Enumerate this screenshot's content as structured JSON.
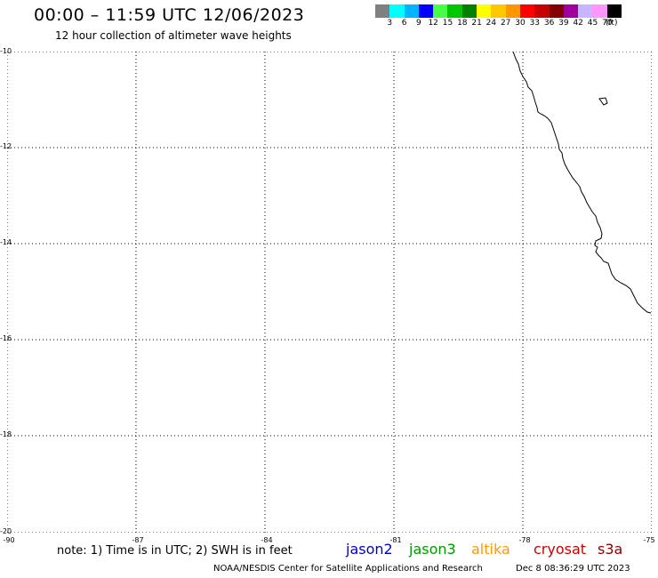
{
  "header": {
    "title": "00:00 – 11:59 UTC 12/06/2023",
    "subtitle": "12 hour collection of altimeter wave heights"
  },
  "legend": {
    "colors": [
      "#808080",
      "#00ffff",
      "#00b4ff",
      "#0000ff",
      "#46ff46",
      "#00c800",
      "#008200",
      "#ffff00",
      "#ffc800",
      "#ff9600",
      "#ff0000",
      "#c80000",
      "#820000",
      "#a000a0",
      "#c8b4ff",
      "#ff96ff",
      "#000000"
    ],
    "labels": [
      "3",
      "6",
      "9",
      "12",
      "15",
      "18",
      "21",
      "24",
      "27",
      "30",
      "33",
      "36",
      "39",
      "42",
      "45",
      "70",
      "(ft)"
    ]
  },
  "map": {
    "lat_ticks": [
      "-10",
      "-12",
      "-14",
      "-16",
      "-18",
      "-20"
    ],
    "lon_ticks": [
      "-90",
      "-87",
      "-84",
      "-81",
      "-78",
      "-75"
    ]
  },
  "footer": {
    "note": "note: 1) Time is in UTC; 2) SWH is in feet",
    "satellites": [
      {
        "name": "jason2",
        "color": "#0000cc"
      },
      {
        "name": "jason3",
        "color": "#009900"
      },
      {
        "name": "altika",
        "color": "#ff9900"
      },
      {
        "name": "cryosat",
        "color": "#cc0000"
      },
      {
        "name": "s3a",
        "color": "#880000"
      }
    ],
    "credit": "NOAA/NESDIS Center for Satellite Applications and Research",
    "timestamp": "Dec  8 08:36:29 UTC 2023"
  }
}
